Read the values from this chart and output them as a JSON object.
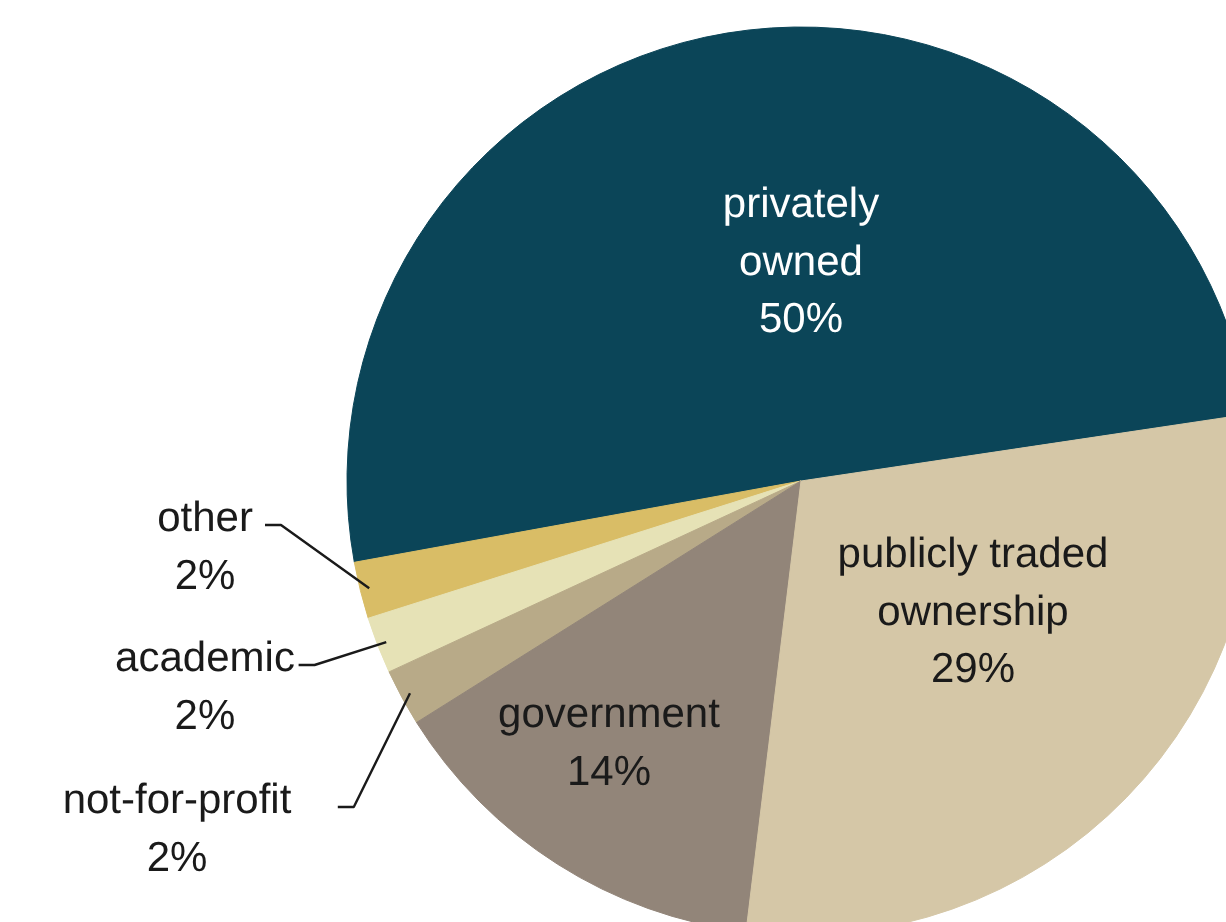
{
  "chart_data": {
    "type": "pie",
    "categories": [
      "privately owned",
      "other",
      "academic",
      "not-for-profit",
      "government",
      "publicly traded ownership"
    ],
    "values": [
      50,
      2,
      2,
      2,
      14,
      29
    ],
    "value_labels": [
      "50%",
      "2%",
      "2%",
      "2%",
      "14%",
      "29%"
    ],
    "colors": [
      "#0b4558",
      "#d9bd66",
      "#e6e2b6",
      "#b8aa88",
      "#928579",
      "#d5c7a7"
    ]
  }
}
